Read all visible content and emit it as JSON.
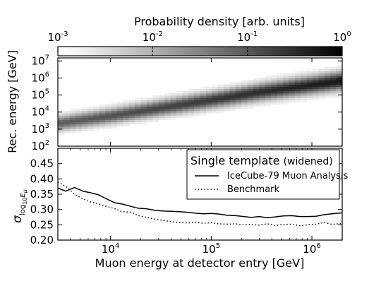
{
  "chart_data": [
    {
      "type": "heatmap",
      "panel": "top",
      "colorbar": {
        "label": "Probability density [arb. units]",
        "scale": "log",
        "range": [
          0.001,
          1
        ],
        "ticks": [
          {
            "value": 0.001,
            "base": "10",
            "exp": "-3"
          },
          {
            "value": 0.01,
            "base": "10",
            "exp": "-2"
          },
          {
            "value": 0.1,
            "base": "10",
            "exp": "-1"
          },
          {
            "value": 1,
            "base": "10",
            "exp": "0"
          }
        ],
        "colormap": [
          "#ffffff",
          "#000000"
        ]
      },
      "ylabel": "Rec. energy [GeV]",
      "yscale": "log",
      "ylim": [
        100,
        15000000
      ],
      "yticks": [
        {
          "value": 100,
          "base": "10",
          "exp": "2"
        },
        {
          "value": 1000,
          "base": "10",
          "exp": "3"
        },
        {
          "value": 10000,
          "base": "10",
          "exp": "4"
        },
        {
          "value": 100000,
          "base": "10",
          "exp": "5"
        },
        {
          "value": 1000000,
          "base": "10",
          "exp": "6"
        },
        {
          "value": 10000000,
          "base": "10",
          "exp": "7"
        }
      ],
      "xscale": "log",
      "xlim": [
        3000,
        2000000
      ],
      "ridge": {
        "x": [
          3000,
          10000,
          30000,
          100000,
          300000,
          1000000,
          2000000
        ],
        "y": [
          2200,
          6000,
          17000,
          52000,
          150000,
          400000,
          700000
        ],
        "width_log10": 0.3
      }
    },
    {
      "type": "line",
      "panel": "bottom",
      "ylabel": "σ",
      "ylabel_sub": "log",
      "ylabel_subsub": "10",
      "ylabel_subtail": "E",
      "ylabel_subtail_sub": "μ",
      "yscale": "linear",
      "ylim": [
        0.2,
        0.5
      ],
      "yticks": [
        "0.20",
        "0.25",
        "0.30",
        "0.35",
        "0.40",
        "0.45"
      ],
      "xlabel": "Muon energy at detector entry [GeV]",
      "xscale": "log",
      "xlim": [
        3000,
        2000000
      ],
      "xticks": [
        {
          "value": 10000,
          "base": "10",
          "exp": "4"
        },
        {
          "value": 100000,
          "base": "10",
          "exp": "5"
        },
        {
          "value": 1000000,
          "base": "10",
          "exp": "6"
        }
      ],
      "legend": {
        "placement": "top-right",
        "title": "Single template",
        "title_suffix": "(widened)"
      },
      "series": [
        {
          "name": "IceCube-79 Muon Analysis",
          "style": "solid",
          "x": [
            3000,
            3600,
            4400,
            5300,
            6300,
            7600,
            9100,
            11000,
            13000,
            16000,
            19000,
            23000,
            28000,
            34000,
            40000,
            48000,
            58000,
            70000,
            84000,
            100000,
            120000,
            145000,
            175000,
            210000,
            250000,
            300000,
            360000,
            435000,
            520000,
            630000,
            760000,
            910000,
            1100000,
            1320000,
            1590000,
            2000000
          ],
          "y": [
            0.37,
            0.36,
            0.372,
            0.36,
            0.355,
            0.348,
            0.335,
            0.322,
            0.318,
            0.31,
            0.304,
            0.302,
            0.297,
            0.295,
            0.294,
            0.293,
            0.291,
            0.288,
            0.286,
            0.287,
            0.285,
            0.281,
            0.28,
            0.277,
            0.274,
            0.277,
            0.273,
            0.276,
            0.279,
            0.28,
            0.277,
            0.277,
            0.278,
            0.283,
            0.286,
            0.289
          ]
        },
        {
          "name": "Benchmark",
          "style": "dotted",
          "x": [
            3000,
            3600,
            4400,
            5300,
            6300,
            7600,
            9100,
            11000,
            13000,
            16000,
            19000,
            23000,
            28000,
            34000,
            40000,
            48000,
            58000,
            70000,
            84000,
            100000,
            120000,
            145000,
            175000,
            210000,
            250000,
            300000,
            360000,
            435000,
            520000,
            630000,
            760000,
            910000,
            1100000,
            1320000,
            1590000,
            2000000
          ],
          "y": [
            0.39,
            0.375,
            0.35,
            0.335,
            0.325,
            0.318,
            0.31,
            0.303,
            0.293,
            0.291,
            0.28,
            0.274,
            0.268,
            0.264,
            0.26,
            0.258,
            0.256,
            0.258,
            0.255,
            0.257,
            0.253,
            0.252,
            0.253,
            0.25,
            0.251,
            0.249,
            0.253,
            0.248,
            0.251,
            0.252,
            0.247,
            0.25,
            0.252,
            0.258,
            0.251,
            0.255
          ]
        }
      ]
    }
  ]
}
